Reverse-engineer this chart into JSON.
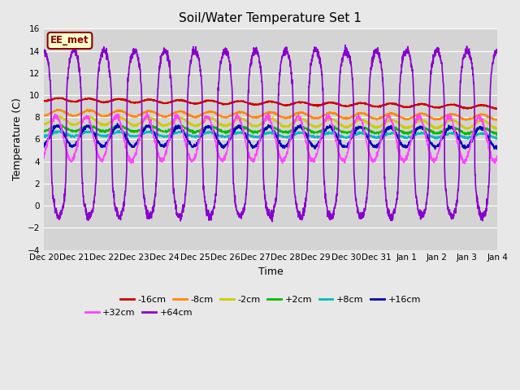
{
  "title": "Soil/Water Temperature Set 1",
  "xlabel": "Time",
  "ylabel": "Temperature (C)",
  "ylim": [
    -4,
    16
  ],
  "yticks": [
    -4,
    -2,
    0,
    2,
    4,
    6,
    8,
    10,
    12,
    14,
    16
  ],
  "fig_bg": "#e8e8e8",
  "plot_bg": "#d4d4d4",
  "watermark": "EE_met",
  "x_labels": [
    "Dec 20",
    "Dec 21",
    "Dec 22",
    "Dec 23",
    "Dec 24",
    "Dec 25",
    "Dec 26",
    "Dec 27",
    "Dec 28",
    "Dec 29",
    "Dec 30",
    "Dec 31",
    "Jan 1",
    "Jan 2",
    "Jan 3",
    "Jan 4"
  ],
  "n_days": 15,
  "points_per_day": 144,
  "series_config": {
    "-16cm": {
      "color": "#cc0000",
      "base": 9.6,
      "amplitude": 0.15,
      "trend": -0.045,
      "noise": 0.03,
      "lw": 1.2,
      "phase": 0.0
    },
    "-8cm": {
      "color": "#ff8800",
      "base": 8.4,
      "amplitude": 0.25,
      "trend": -0.027,
      "noise": 0.04,
      "lw": 1.2,
      "phase": 0.0
    },
    "-2cm": {
      "color": "#cccc00",
      "base": 7.7,
      "amplitude": 0.35,
      "trend": -0.025,
      "noise": 0.05,
      "lw": 1.2,
      "phase": 0.0
    },
    "+2cm": {
      "color": "#00bb00",
      "base": 7.0,
      "amplitude": 0.25,
      "trend": -0.015,
      "noise": 0.05,
      "lw": 1.2,
      "phase": 0.0
    },
    "+8cm": {
      "color": "#00bbbb",
      "base": 6.5,
      "amplitude": 0.2,
      "trend": -0.012,
      "noise": 0.05,
      "lw": 1.2,
      "phase": 0.0
    },
    "+16cm": {
      "color": "#0000bb",
      "base": 6.3,
      "amplitude": 0.9,
      "trend": -0.008,
      "noise": 0.08,
      "lw": 1.2,
      "phase": 0.3
    },
    "+32cm": {
      "color": "#ff44ff",
      "base": 6.1,
      "amplitude": 2.0,
      "trend": -0.005,
      "noise": 0.12,
      "lw": 1.2,
      "phase": 0.6
    },
    "+64cm": {
      "color": "#8800cc",
      "base": 6.5,
      "amplitude": 7.5,
      "trend": 0.0,
      "noise": 0.2,
      "lw": 1.2,
      "phase": 0.0
    }
  },
  "legend_order": [
    "-16cm",
    "-8cm",
    "-2cm",
    "+2cm",
    "+8cm",
    "+16cm",
    "+32cm",
    "+64cm"
  ]
}
